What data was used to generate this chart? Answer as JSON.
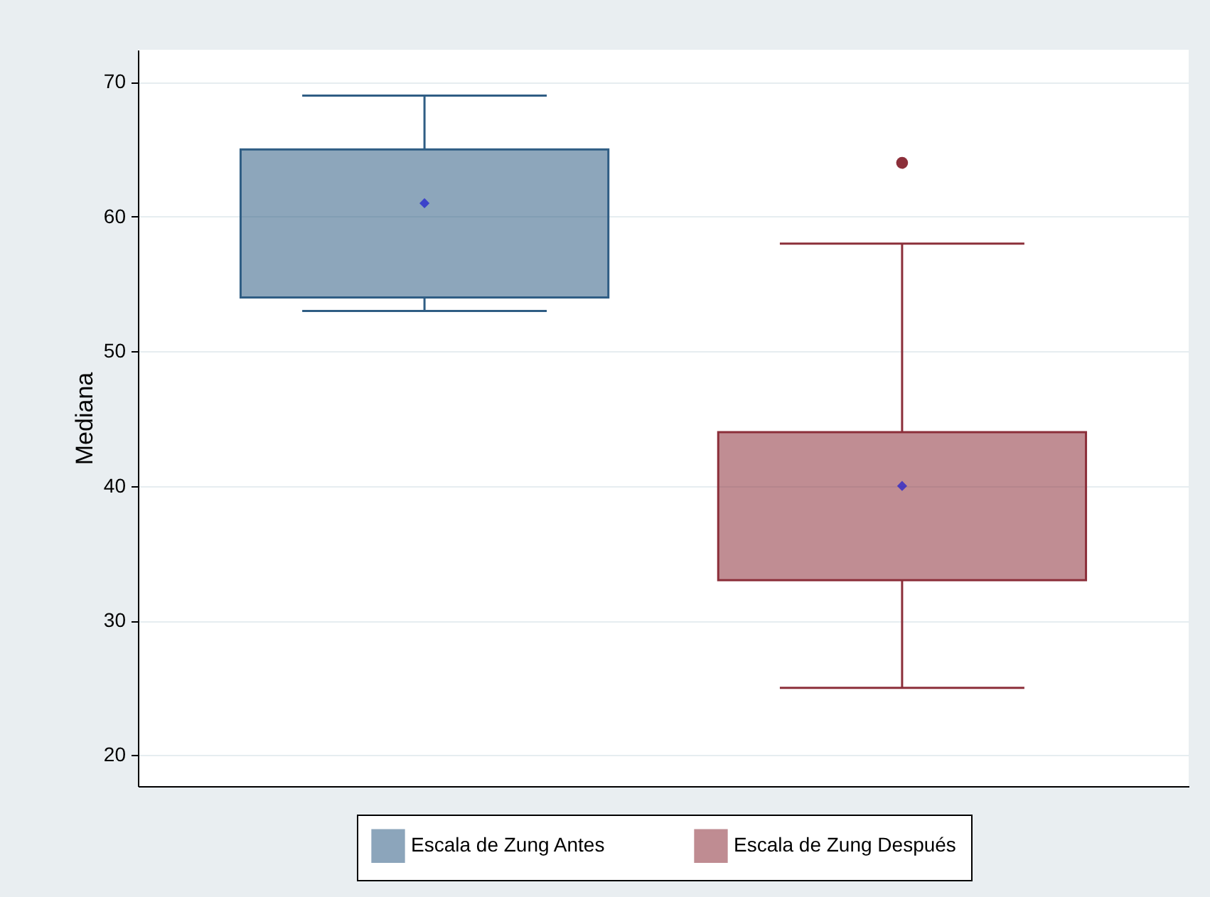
{
  "chart_data": {
    "type": "box",
    "ylabel": "Mediana",
    "categories": [
      null,
      null
    ],
    "series": [
      {
        "name": "Escala de Zung Antes",
        "color": "#2f5d84",
        "boxes": [
          {
            "low": 53,
            "q1": 54,
            "median": 61,
            "q3": 65,
            "high": 69
          },
          null
        ]
      },
      {
        "name": "Escala de Zung Después",
        "color": "#8c2f3a",
        "boxes": [
          null,
          {
            "low": 25,
            "q1": 33,
            "median": 40,
            "q3": 44,
            "high": 58,
            "outliers": [
              64
            ]
          }
        ]
      }
    ],
    "ylim": [
      17.7,
      72.4
    ],
    "yticks": [
      20,
      30,
      40,
      50,
      60,
      70
    ],
    "grid": "y",
    "legend": "bottom",
    "marker": "diamond",
    "tick_labels": "y"
  }
}
